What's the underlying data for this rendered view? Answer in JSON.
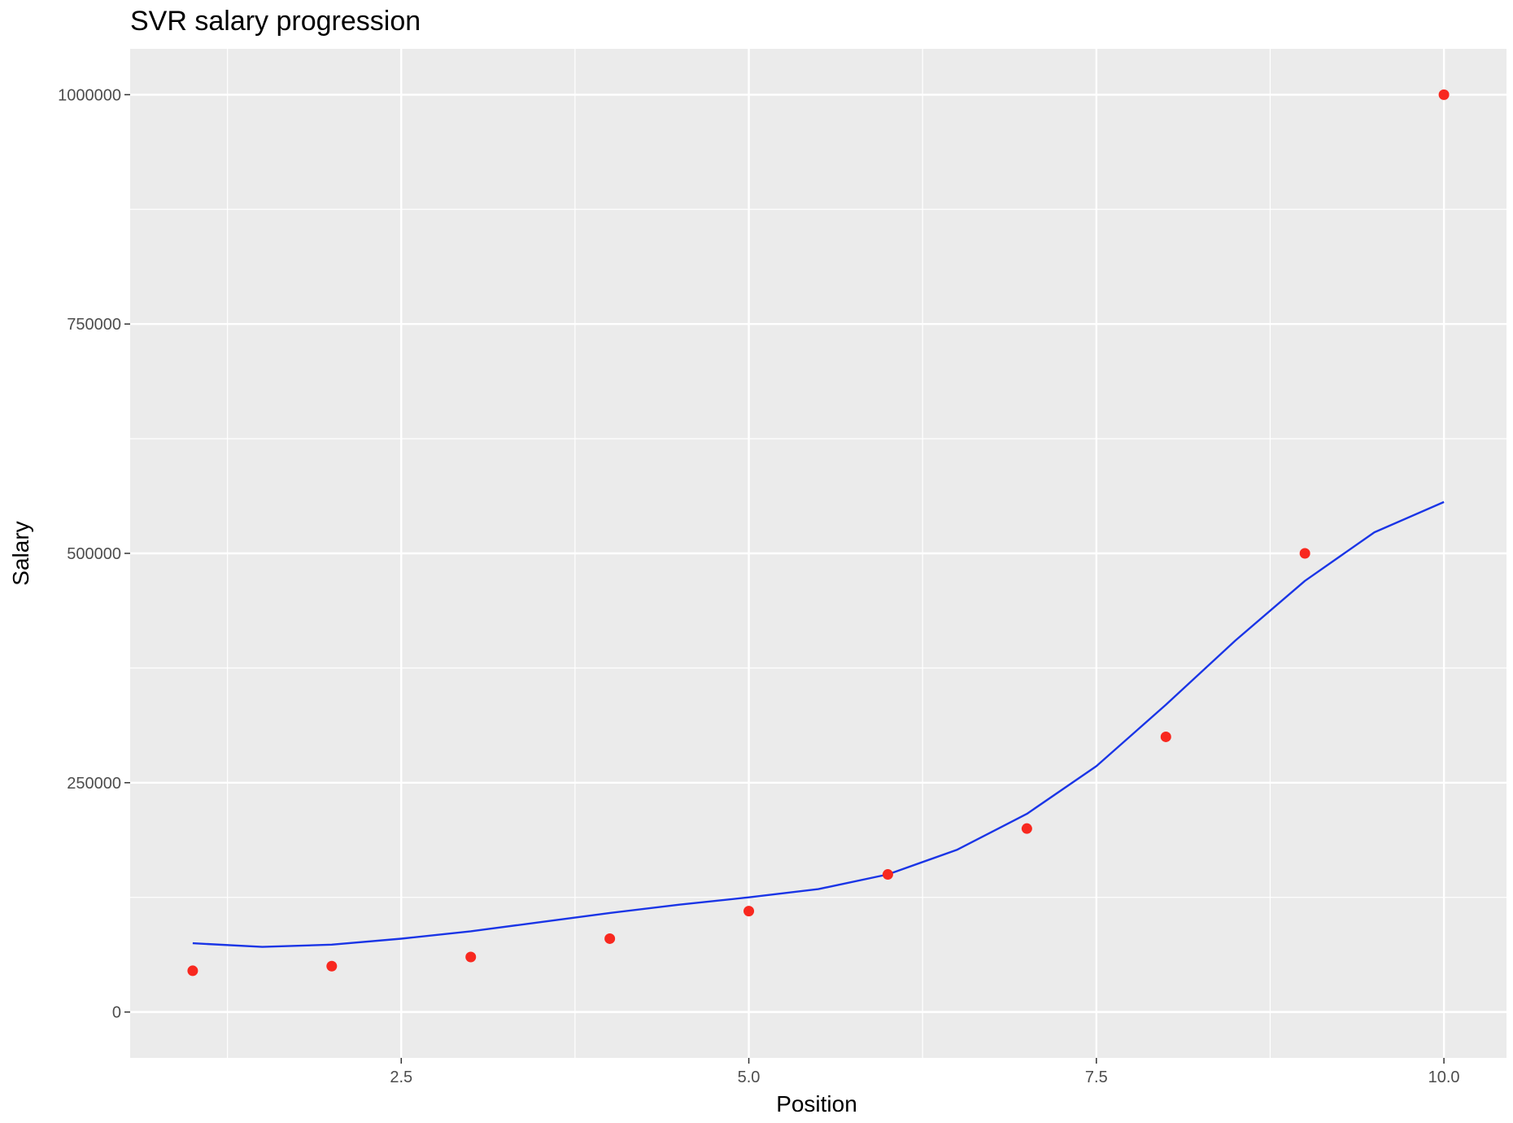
{
  "chart_data": {
    "type": "scatter",
    "title": "SVR salary progression",
    "xlabel": "Position",
    "ylabel": "Salary",
    "xlim": [
      0.55,
      10.45
    ],
    "ylim": [
      -50000,
      1050000
    ],
    "x_ticks": [
      2.5,
      5.0,
      7.5,
      10.0
    ],
    "x_tick_labels": [
      "2.5",
      "5.0",
      "7.5",
      "10.0"
    ],
    "x_minor_ticks": [
      1.25,
      3.75,
      6.25,
      8.75
    ],
    "y_ticks": [
      0,
      250000,
      500000,
      750000,
      1000000
    ],
    "y_tick_labels": [
      "0",
      "250000",
      "500000",
      "750000",
      "1000000"
    ],
    "y_minor_ticks": [
      125000,
      375000,
      625000,
      875000
    ],
    "grid": true,
    "series": [
      {
        "type": "scatter",
        "color": "#f8281f",
        "x": [
          1,
          2,
          3,
          4,
          5,
          6,
          7,
          8,
          9,
          10
        ],
        "y": [
          45000,
          50000,
          60000,
          80000,
          110000,
          150000,
          200000,
          300000,
          500000,
          1000000
        ]
      },
      {
        "type": "line",
        "color": "#1a35e6",
        "x": [
          1,
          1.5,
          2,
          2.5,
          3,
          3.5,
          4,
          4.5,
          5,
          5.5,
          6,
          6.5,
          7,
          7.5,
          8,
          8.5,
          9,
          9.5,
          10
        ],
        "y": [
          75000,
          71000,
          73500,
          80000,
          88000,
          98000,
          108000,
          117000,
          125000,
          134000,
          150000,
          177000,
          216000,
          268000,
          335000,
          405000,
          470000,
          523000,
          556000
        ]
      }
    ],
    "colors": {
      "panel_background": "#ebebeb",
      "grid": "#ffffff",
      "tick_text": "#4d4d4d"
    }
  }
}
